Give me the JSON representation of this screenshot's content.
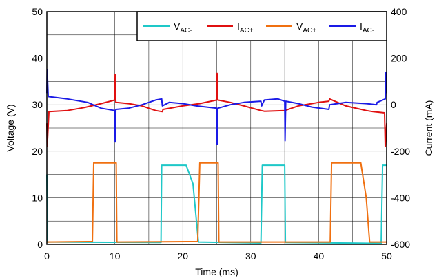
{
  "chart_data": {
    "type": "line",
    "xlabel": "Time (ms)",
    "ylabel_left": "Voltage (V)",
    "ylabel_right": "Current (mA)",
    "x_range": [
      0,
      50
    ],
    "y_left_range": [
      0,
      50
    ],
    "y_right_range": [
      -600,
      400
    ],
    "x_ticks": [
      "0",
      "10",
      "20",
      "30",
      "40",
      "50"
    ],
    "y_left_ticks": [
      "0",
      "10",
      "20",
      "30",
      "40",
      "50"
    ],
    "y_right_ticks": [
      "-600",
      "-400",
      "-200",
      "0",
      "200",
      "400"
    ],
    "grid": true,
    "legend_position": "top-right",
    "series": [
      {
        "name": "V",
        "sub": "AC-",
        "color": "#1ec8c8",
        "axis": "left",
        "points": [
          [
            0,
            15
          ],
          [
            0.1,
            0.5
          ],
          [
            16.8,
            0.4
          ],
          [
            16.9,
            17
          ],
          [
            20.5,
            17
          ],
          [
            21.5,
            13
          ],
          [
            22.3,
            0.5
          ],
          [
            31.5,
            0.3
          ],
          [
            31.7,
            17
          ],
          [
            35,
            17
          ],
          [
            35.1,
            0.4
          ],
          [
            43,
            0.3
          ],
          [
            49.2,
            0.2
          ],
          [
            49.4,
            17
          ],
          [
            50,
            17
          ]
        ]
      },
      {
        "name": "I",
        "sub": "AC+",
        "color": "#e01010",
        "axis": "right",
        "points": [
          [
            0,
            -80
          ],
          [
            0.05,
            -180
          ],
          [
            0.3,
            -30
          ],
          [
            3,
            -25
          ],
          [
            5.5,
            -12
          ],
          [
            8,
            5
          ],
          [
            10,
            20
          ],
          [
            10.05,
            130
          ],
          [
            10.15,
            10
          ],
          [
            12,
            5
          ],
          [
            14,
            -5
          ],
          [
            16,
            -25
          ],
          [
            17,
            -30
          ],
          [
            17.1,
            -20
          ],
          [
            20,
            -5
          ],
          [
            22.5,
            5
          ],
          [
            25,
            20
          ],
          [
            25.05,
            135
          ],
          [
            25.15,
            20
          ],
          [
            27,
            10
          ],
          [
            29,
            -5
          ],
          [
            31.5,
            -25
          ],
          [
            32,
            -28
          ],
          [
            35,
            -25
          ],
          [
            37,
            -5
          ],
          [
            40,
            10
          ],
          [
            41.5,
            15
          ],
          [
            41.6,
            25
          ],
          [
            44,
            -5
          ],
          [
            47,
            -25
          ],
          [
            48,
            -30
          ],
          [
            49.7,
            -35
          ],
          [
            49.8,
            -180
          ],
          [
            50,
            -80
          ]
        ]
      },
      {
        "name": "V",
        "sub": "AC+",
        "color": "#f07010",
        "axis": "left",
        "points": [
          [
            0,
            0.5
          ],
          [
            6.7,
            0.6
          ],
          [
            6.9,
            17.5
          ],
          [
            10.2,
            17.5
          ],
          [
            10.3,
            0.5
          ],
          [
            22.2,
            0.6
          ],
          [
            22.5,
            17.5
          ],
          [
            25.2,
            17.5
          ],
          [
            25.3,
            0.5
          ],
          [
            41.7,
            0.5
          ],
          [
            41.9,
            17.5
          ],
          [
            46.2,
            17.5
          ],
          [
            47,
            10
          ],
          [
            47.5,
            0.5
          ],
          [
            50,
            0.5
          ]
        ]
      },
      {
        "name": "I",
        "sub": "AC-",
        "color": "#1a1ae6",
        "axis": "right",
        "points": [
          [
            0,
            50
          ],
          [
            0.05,
            150
          ],
          [
            0.2,
            35
          ],
          [
            3,
            25
          ],
          [
            6,
            10
          ],
          [
            8,
            -15
          ],
          [
            10,
            -25
          ],
          [
            10.05,
            -160
          ],
          [
            10.15,
            -20
          ],
          [
            12,
            -15
          ],
          [
            14,
            0
          ],
          [
            16,
            20
          ],
          [
            16.9,
            25
          ],
          [
            17,
            -5
          ],
          [
            18,
            10
          ],
          [
            20,
            5
          ],
          [
            22,
            -5
          ],
          [
            25,
            -15
          ],
          [
            25.05,
            -170
          ],
          [
            25.15,
            -15
          ],
          [
            27,
            0
          ],
          [
            29,
            10
          ],
          [
            31.5,
            15
          ],
          [
            31.6,
            -5
          ],
          [
            32,
            20
          ],
          [
            34,
            25
          ],
          [
            35,
            15
          ],
          [
            35.05,
            -155
          ],
          [
            35.15,
            15
          ],
          [
            37,
            5
          ],
          [
            39,
            -10
          ],
          [
            41.5,
            -20
          ],
          [
            41.6,
            0
          ],
          [
            44,
            10
          ],
          [
            47,
            5
          ],
          [
            48.5,
            0
          ],
          [
            48.6,
            10
          ],
          [
            49.8,
            25
          ],
          [
            49.9,
            140
          ],
          [
            50,
            50
          ]
        ]
      }
    ]
  }
}
